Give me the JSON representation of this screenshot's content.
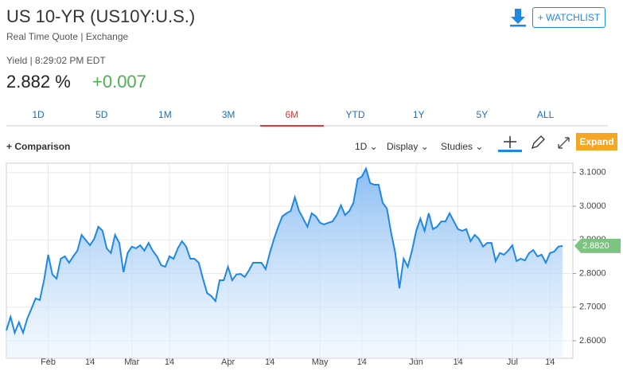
{
  "header": {
    "title": "US 10-YR (US10Y:U.S.)",
    "subtitle": "Real Time Quote | Exchange",
    "watchlist": "+ WATCHLIST"
  },
  "quote": {
    "label": "Yield | 8:29:02 PM EDT",
    "price": "2.882",
    "unit": "%",
    "change": "+0.007"
  },
  "ranges": {
    "items": [
      "1D",
      "5D",
      "1M",
      "3M",
      "6M",
      "YTD",
      "1Y",
      "5Y",
      "ALL"
    ],
    "active": 4
  },
  "toolbar": {
    "comparison": "+ Comparison",
    "interval": "1D",
    "display": "Display",
    "studies": "Studies",
    "expand": "Expand"
  },
  "chart_data": {
    "type": "area",
    "color": "#1e88e5",
    "categories": [
      null,
      null,
      null,
      null,
      null,
      null,
      null,
      null,
      null,
      null,
      "Feb",
      null,
      null,
      null,
      null,
      null,
      null,
      null,
      null,
      null,
      "14",
      null,
      null,
      null,
      null,
      null,
      null,
      null,
      null,
      null,
      "Mar",
      null,
      null,
      null,
      null,
      null,
      null,
      null,
      null,
      "14",
      null,
      null,
      null,
      null,
      null,
      null,
      null,
      null,
      null,
      null,
      null,
      null,
      null,
      "Apr",
      null,
      null,
      null,
      null,
      null,
      null,
      null,
      null,
      null,
      "14",
      null,
      null,
      null,
      null,
      null,
      null,
      null,
      null,
      null,
      null,
      null,
      "May",
      null,
      null,
      null,
      null,
      null,
      null,
      null,
      null,
      null,
      "14",
      null,
      null,
      null,
      null,
      null,
      null,
      null,
      null,
      null,
      null,
      null,
      null,
      "Jun",
      null,
      null,
      null,
      null,
      null,
      null,
      null,
      null,
      null,
      "14",
      null,
      null,
      null,
      null,
      null,
      null,
      null,
      null,
      null,
      null,
      null,
      null,
      "Jul",
      null,
      null,
      null,
      null,
      null,
      null,
      null,
      null,
      "14",
      null,
      null,
      null
    ],
    "values": [
      2.631,
      2.671,
      2.624,
      2.655,
      2.624,
      2.666,
      2.695,
      2.726,
      2.721,
      2.78,
      2.856,
      2.797,
      2.785,
      2.844,
      2.851,
      2.832,
      2.851,
      2.868,
      2.915,
      2.899,
      2.884,
      2.903,
      2.939,
      2.927,
      2.875,
      2.861,
      2.915,
      2.891,
      2.804,
      2.861,
      2.88,
      2.875,
      2.884,
      2.868,
      2.891,
      2.868,
      2.851,
      2.825,
      2.82,
      2.851,
      2.844,
      2.875,
      2.896,
      2.88,
      2.844,
      2.844,
      2.832,
      2.785,
      2.742,
      2.733,
      2.718,
      2.78,
      2.78,
      2.82,
      2.78,
      2.797,
      2.799,
      2.79,
      2.809,
      2.832,
      2.832,
      2.832,
      2.813,
      2.861,
      2.903,
      2.939,
      2.97,
      2.979,
      2.986,
      3.027,
      2.986,
      2.963,
      2.939,
      2.979,
      2.97,
      2.951,
      2.946,
      2.951,
      2.955,
      2.974,
      3.003,
      2.974,
      2.986,
      3.01,
      3.081,
      3.088,
      3.112,
      3.069,
      3.064,
      3.064,
      3.01,
      2.993,
      2.922,
      2.861,
      2.756,
      2.844,
      2.82,
      2.868,
      2.927,
      2.963,
      2.927,
      2.979,
      2.932,
      2.939,
      2.955,
      2.955,
      2.979,
      2.955,
      2.932,
      2.927,
      2.932,
      2.896,
      2.915,
      2.903,
      2.88,
      2.891,
      2.891,
      2.837,
      2.861,
      2.856,
      2.868,
      2.884,
      2.837,
      2.844,
      2.839,
      2.861,
      2.87,
      2.851,
      2.856,
      2.832,
      2.861,
      2.865,
      2.88,
      2.882
    ],
    "last_label": {
      "value": 2.882,
      "label": "2.8820"
    },
    "ylim": [
      2.548,
      3.128
    ],
    "yticks": [
      {
        "value": 2.6,
        "label": "2.6000"
      },
      {
        "value": 2.7,
        "label": "2.7000"
      },
      {
        "value": 2.8,
        "label": "2.8000"
      },
      {
        "value": 2.9,
        "label": "2.9000"
      },
      {
        "value": 3.0,
        "label": "3.0000"
      },
      {
        "value": 3.1,
        "label": "3.1000"
      }
    ],
    "grid": true
  }
}
